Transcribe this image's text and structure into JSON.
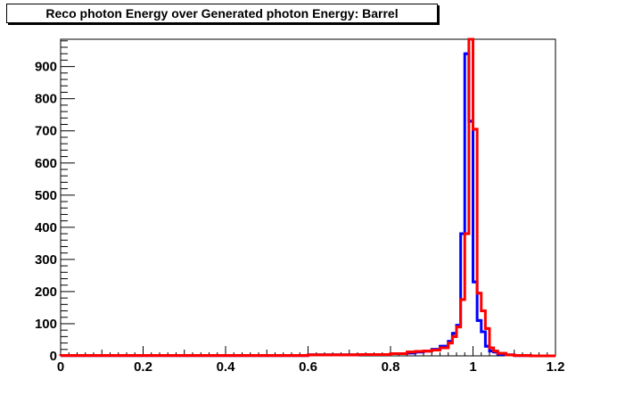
{
  "chart_data": {
    "type": "line",
    "title": "Reco photon Energy over Generated photon Energy: Barrel",
    "xlabel": "",
    "ylabel": "",
    "xlim": [
      0,
      1.2
    ],
    "ylim": [
      0,
      985
    ],
    "grid": false,
    "x_ticks": [
      "0",
      "0.2",
      "0.4",
      "0.6",
      "0.8",
      "1",
      "1.2"
    ],
    "y_ticks": [
      "0",
      "100",
      "200",
      "300",
      "400",
      "500",
      "600",
      "700",
      "800",
      "900"
    ],
    "bin_edges": [
      0,
      0.6,
      0.72,
      0.8,
      0.84,
      0.86,
      0.88,
      0.9,
      0.92,
      0.94,
      0.95,
      0.96,
      0.97,
      0.98,
      0.99,
      1.0,
      1.01,
      1.02,
      1.03,
      1.04,
      1.05,
      1.06,
      1.08,
      1.1,
      1.14,
      1.2
    ],
    "series": [
      {
        "color": "#0000ff",
        "values": [
          1,
          3,
          4,
          7,
          9,
          12,
          15,
          20,
          30,
          45,
          70,
          95,
          380,
          940,
          730,
          230,
          110,
          75,
          30,
          15,
          12,
          5,
          3,
          1,
          0
        ]
      },
      {
        "color": "#ff0000",
        "values": [
          1,
          3,
          4,
          7,
          12,
          14,
          15,
          18,
          25,
          40,
          60,
          90,
          175,
          380,
          985,
          705,
          195,
          140,
          85,
          25,
          15,
          8,
          3,
          1,
          0
        ]
      }
    ]
  }
}
